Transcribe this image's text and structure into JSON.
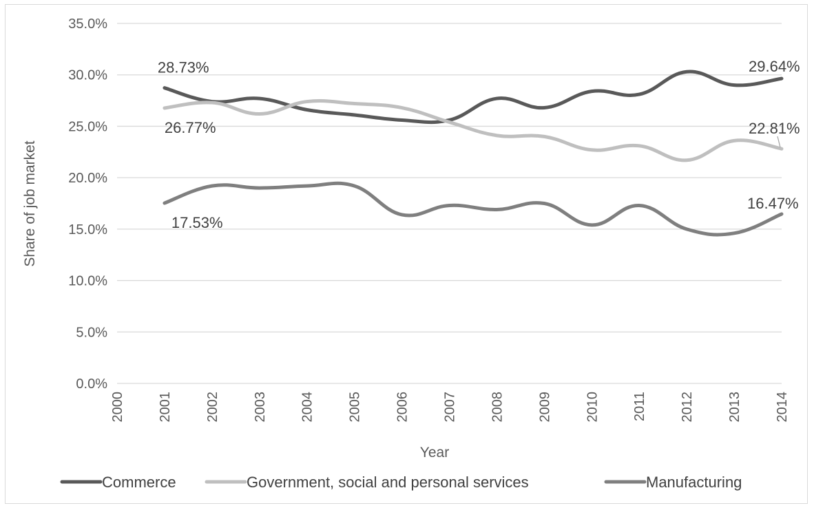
{
  "chart_data": {
    "type": "line",
    "xlabel": "Year",
    "ylabel": "Share of job market",
    "x": [
      "2000",
      "2001",
      "2002",
      "2003",
      "2004",
      "2005",
      "2006",
      "2007",
      "2008",
      "2009",
      "2010",
      "2011",
      "2012",
      "2013",
      "2014"
    ],
    "ylim": [
      0,
      35
    ],
    "yticks": [
      "0.0%",
      "5.0%",
      "10.0%",
      "15.0%",
      "20.0%",
      "25.0%",
      "30.0%",
      "35.0%"
    ],
    "grid": true,
    "legend_position": "bottom",
    "series": [
      {
        "name": "Commerce",
        "color": "#595959",
        "values": [
          null,
          28.73,
          27.4,
          27.7,
          26.6,
          26.1,
          25.6,
          25.6,
          27.7,
          26.8,
          28.4,
          28.1,
          30.3,
          29.0,
          29.64
        ],
        "labels": {
          "first": "28.73%",
          "last": "29.64%"
        }
      },
      {
        "name": "Government, social and personal services",
        "color": "#bfbfbf",
        "values": [
          null,
          26.77,
          27.3,
          26.2,
          27.4,
          27.2,
          26.8,
          25.4,
          24.1,
          24.0,
          22.7,
          23.1,
          21.7,
          23.6,
          22.81
        ],
        "labels": {
          "first": "26.77%",
          "last": "22.81%"
        }
      },
      {
        "name": "Manufacturing",
        "color": "#7f7f7f",
        "values": [
          null,
          17.53,
          19.2,
          19.0,
          19.2,
          19.2,
          16.4,
          17.3,
          16.9,
          17.5,
          15.4,
          17.3,
          15.0,
          14.6,
          16.47
        ],
        "labels": {
          "first": "17.53%",
          "last": "16.47%"
        }
      }
    ]
  }
}
